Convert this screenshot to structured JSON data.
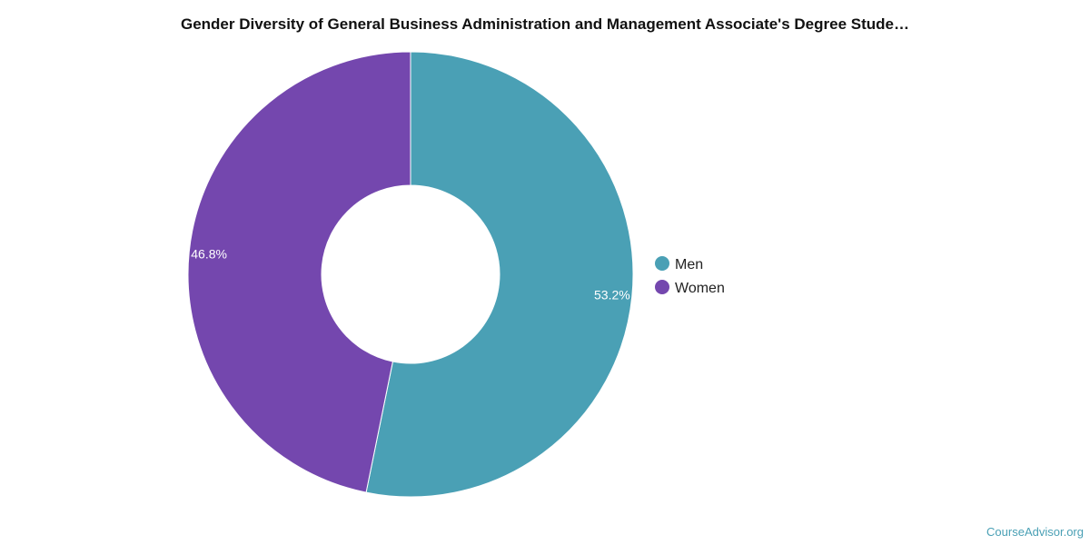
{
  "chart_data": {
    "type": "pie",
    "variant": "donut",
    "title": "Gender Diversity of General Business Administration and Management Associate's Degree Stude…",
    "categories": [
      "Men",
      "Women"
    ],
    "values": [
      53.2,
      46.8
    ],
    "labels": [
      "53.2%",
      "46.8%"
    ],
    "colors": [
      "#4aa0b5",
      "#7447ae"
    ],
    "legend_position": "right"
  },
  "footer": {
    "source": "CourseAdvisor.org"
  }
}
